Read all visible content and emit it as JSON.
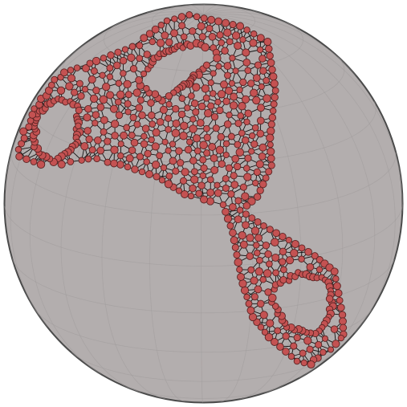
{
  "render": {
    "background_color": "#ffffff",
    "sphere_fill": "#b3aeae",
    "sphere_outline": "#4a4a4a",
    "grid_color": "#9e9a9a",
    "edge_color": "#111111",
    "node_fill": "#c45252",
    "node_stroke": "#5a2424"
  }
}
